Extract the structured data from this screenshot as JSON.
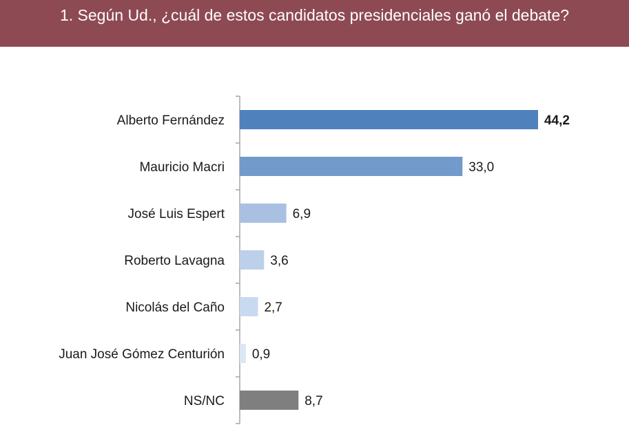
{
  "header": {
    "title": "1. Según Ud., ¿cuál de estos candidatos presidenciales ganó el debate?",
    "background": "#8e4a53"
  },
  "chart_data": {
    "type": "bar",
    "orientation": "horizontal",
    "title": "1. Según Ud., ¿cuál de estos candidatos presidenciales ganó el debate?",
    "categories": [
      "Alberto Fernández",
      "Mauricio Macri",
      "José Luis Espert",
      "Roberto Lavagna",
      "Nicolás del Caño",
      "Juan José Gómez Centurión",
      "NS/NC"
    ],
    "values": [
      44.2,
      33.0,
      6.9,
      3.6,
      2.7,
      0.9,
      8.7
    ],
    "value_labels": [
      "44,2",
      "33,0",
      "6,9",
      "3,6",
      "2,7",
      "0,9",
      "8,7"
    ],
    "bar_colors": [
      "#4f81bd",
      "#729aca",
      "#a9c0e0",
      "#bdd0ea",
      "#c8daf0",
      "#dbe7f5",
      "#7f7f7f"
    ],
    "bold_value_index": 0,
    "xlim": [
      0,
      44.2
    ],
    "grid": false,
    "legend": "none",
    "xlabel": "",
    "ylabel": ""
  }
}
